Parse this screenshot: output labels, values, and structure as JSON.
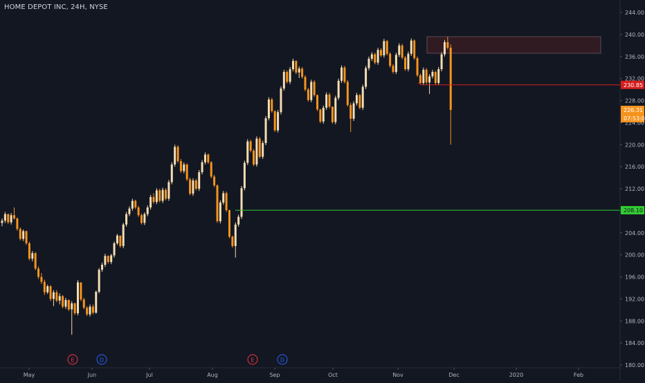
{
  "header": {
    "symbol_title": "HOME DEPOT INC, 24H, NYSE"
  },
  "colors": {
    "background": "#131722",
    "up": "#f5deb3",
    "down": "#f7941d",
    "axis_text": "#b2b5be",
    "support_line": "#33cc33",
    "resistance_line": "#d61e1e",
    "zone_fill": "#3b1d24",
    "zone_border": "#5d4b55",
    "event_earnings": "#f23645",
    "event_dividend": "#2962ff"
  },
  "chart_data": {
    "type": "candlestick",
    "title": "HOME DEPOT INC, 24H, NYSE",
    "ylim": [
      180,
      244
    ],
    "y_ticks": [
      "244.00",
      "240.00",
      "236.00",
      "232.00",
      "228.00",
      "224.00",
      "220.00",
      "216.00",
      "212.00",
      "208.00",
      "204.00",
      "200.00",
      "196.00",
      "192.00",
      "188.00",
      "184.00",
      "180.00"
    ],
    "x_tick_labels": [
      "May",
      "Jun",
      "Jul",
      "Aug",
      "Sep",
      "Oct",
      "Nov",
      "Dec",
      "2020",
      "Feb"
    ],
    "price_labels": [
      {
        "text": "230.85",
        "value": 230.85,
        "kind": "resistance"
      },
      {
        "text": "226.31",
        "value": 226.31,
        "kind": "last"
      },
      {
        "text": "07:53:02",
        "value": 224.8,
        "kind": "countdown"
      },
      {
        "text": "208.10",
        "value": 208.1,
        "kind": "support"
      }
    ],
    "events": [
      {
        "label": "E",
        "kind": "earnings"
      },
      {
        "label": "D",
        "kind": "dividend"
      },
      {
        "label": "E",
        "kind": "earnings"
      },
      {
        "label": "D",
        "kind": "dividend"
      }
    ],
    "zone": {
      "low": 236.6,
      "high": 239.6
    },
    "candles": [
      [
        205.8,
        206.6,
        205.2,
        206.2
      ],
      [
        206.2,
        207.8,
        205.8,
        207.4
      ],
      [
        207.4,
        207.5,
        205.6,
        205.9
      ],
      [
        205.9,
        207.6,
        205.5,
        207.2
      ],
      [
        207.2,
        208.6,
        206.4,
        206.6
      ],
      [
        206.6,
        206.8,
        204.4,
        204.7
      ],
      [
        204.7,
        205.0,
        202.6,
        202.9
      ],
      [
        202.9,
        204.6,
        202.5,
        204.3
      ],
      [
        204.3,
        204.4,
        201.8,
        202.1
      ],
      [
        202.1,
        202.4,
        199.0,
        199.3
      ],
      [
        199.3,
        200.7,
        198.8,
        200.3
      ],
      [
        200.3,
        200.5,
        197.2,
        197.5
      ],
      [
        197.5,
        197.9,
        195.6,
        196.0
      ],
      [
        196.0,
        196.7,
        194.7,
        195.1
      ],
      [
        195.1,
        195.5,
        192.7,
        193.2
      ],
      [
        193.2,
        194.6,
        192.9,
        194.3
      ],
      [
        194.3,
        194.5,
        191.6,
        192.0
      ],
      [
        192.0,
        193.6,
        190.7,
        193.2
      ],
      [
        193.2,
        193.6,
        191.4,
        191.7
      ],
      [
        191.7,
        193.0,
        191.0,
        192.5
      ],
      [
        192.5,
        192.7,
        190.3,
        190.6
      ],
      [
        190.6,
        192.2,
        190.2,
        191.8
      ],
      [
        191.8,
        191.9,
        189.8,
        190.1
      ],
      [
        190.1,
        191.6,
        185.5,
        191.2
      ],
      [
        191.2,
        191.3,
        189.1,
        189.4
      ],
      [
        189.4,
        195.4,
        189.0,
        195.0
      ],
      [
        195.0,
        195.0,
        191.6,
        191.9
      ],
      [
        191.9,
        192.2,
        190.1,
        190.4
      ],
      [
        190.4,
        190.7,
        188.9,
        189.2
      ],
      [
        189.2,
        191.0,
        188.8,
        190.6
      ],
      [
        190.6,
        191.0,
        189.2,
        189.5
      ],
      [
        189.5,
        193.5,
        189.3,
        193.3
      ],
      [
        193.3,
        197.6,
        193.0,
        197.3
      ],
      [
        197.3,
        198.6,
        196.9,
        198.2
      ],
      [
        198.2,
        200.2,
        197.8,
        199.8
      ],
      [
        199.8,
        199.9,
        198.4,
        198.7
      ],
      [
        198.7,
        200.2,
        198.3,
        199.9
      ],
      [
        199.9,
        202.4,
        199.5,
        202.1
      ],
      [
        202.1,
        203.8,
        201.8,
        203.5
      ],
      [
        203.5,
        203.5,
        201.3,
        201.6
      ],
      [
        201.6,
        205.8,
        201.2,
        205.5
      ],
      [
        205.5,
        207.8,
        205.1,
        207.4
      ],
      [
        207.4,
        208.8,
        207.0,
        208.4
      ],
      [
        208.4,
        210.2,
        208.0,
        209.8
      ],
      [
        209.8,
        210.0,
        208.3,
        208.6
      ],
      [
        208.6,
        208.9,
        206.9,
        207.2
      ],
      [
        207.2,
        207.5,
        205.5,
        205.8
      ],
      [
        205.8,
        207.7,
        205.4,
        207.4
      ],
      [
        207.4,
        209.0,
        207.0,
        208.6
      ],
      [
        208.6,
        210.9,
        208.2,
        210.5
      ],
      [
        210.5,
        211.2,
        209.3,
        209.6
      ],
      [
        209.6,
        212.1,
        209.2,
        211.7
      ],
      [
        211.7,
        212.0,
        209.5,
        209.8
      ],
      [
        209.8,
        212.2,
        209.4,
        211.8
      ],
      [
        211.8,
        212.1,
        209.9,
        210.2
      ],
      [
        210.2,
        213.6,
        209.8,
        213.2
      ],
      [
        213.2,
        216.8,
        212.8,
        216.4
      ],
      [
        216.4,
        220.0,
        216.0,
        219.6
      ],
      [
        219.6,
        219.9,
        216.7,
        217.0
      ],
      [
        217.0,
        217.4,
        214.9,
        215.2
      ],
      [
        215.2,
        216.8,
        214.8,
        216.4
      ],
      [
        216.4,
        216.6,
        213.4,
        213.7
      ],
      [
        213.7,
        214.0,
        210.8,
        211.1
      ],
      [
        211.1,
        213.9,
        210.7,
        213.5
      ],
      [
        213.5,
        213.8,
        211.7,
        212.0
      ],
      [
        212.0,
        215.4,
        211.6,
        215.0
      ],
      [
        215.0,
        217.2,
        214.6,
        216.8
      ],
      [
        216.8,
        218.6,
        216.4,
        218.2
      ],
      [
        218.2,
        218.4,
        216.5,
        216.8
      ],
      [
        216.8,
        217.0,
        213.9,
        214.2
      ],
      [
        214.2,
        214.5,
        212.3,
        212.6
      ],
      [
        212.6,
        212.8,
        205.8,
        206.1
      ],
      [
        206.1,
        209.9,
        205.7,
        209.5
      ],
      [
        209.5,
        211.6,
        209.1,
        211.2
      ],
      [
        211.2,
        211.5,
        207.8,
        208.1
      ],
      [
        208.1,
        208.2,
        203.0,
        203.3
      ],
      [
        203.3,
        203.5,
        201.3,
        201.6
      ],
      [
        201.6,
        205.9,
        199.5,
        205.5
      ],
      [
        205.5,
        207.3,
        205.1,
        206.9
      ],
      [
        206.9,
        212.5,
        206.5,
        212.1
      ],
      [
        212.1,
        217.1,
        211.7,
        216.7
      ],
      [
        216.7,
        221.0,
        216.3,
        220.6
      ],
      [
        220.6,
        220.9,
        218.6,
        218.9
      ],
      [
        218.9,
        219.2,
        216.1,
        216.4
      ],
      [
        216.4,
        221.5,
        216.0,
        221.1
      ],
      [
        221.1,
        221.4,
        217.5,
        217.8
      ],
      [
        217.8,
        220.7,
        217.4,
        220.3
      ],
      [
        220.3,
        225.2,
        219.9,
        224.8
      ],
      [
        224.8,
        228.6,
        224.4,
        228.2
      ],
      [
        228.2,
        228.5,
        225.8,
        226.1
      ],
      [
        226.1,
        226.2,
        222.3,
        222.6
      ],
      [
        222.6,
        226.3,
        222.2,
        225.9
      ],
      [
        225.9,
        230.6,
        225.5,
        230.2
      ],
      [
        230.2,
        233.6,
        229.8,
        233.2
      ],
      [
        233.2,
        233.5,
        231.1,
        231.4
      ],
      [
        231.4,
        234.1,
        231.0,
        233.7
      ],
      [
        233.7,
        235.6,
        233.3,
        235.2
      ],
      [
        235.2,
        235.3,
        232.8,
        233.1
      ],
      [
        233.1,
        234.2,
        232.1,
        233.8
      ],
      [
        233.8,
        234.1,
        232.0,
        232.3
      ],
      [
        232.3,
        232.6,
        229.7,
        230.0
      ],
      [
        230.0,
        230.3,
        227.8,
        228.1
      ],
      [
        228.1,
        231.8,
        227.7,
        231.4
      ],
      [
        231.4,
        231.7,
        228.7,
        229.0
      ],
      [
        229.0,
        229.1,
        226.1,
        226.4
      ],
      [
        226.4,
        226.5,
        223.9,
        224.2
      ],
      [
        224.2,
        227.1,
        223.8,
        226.7
      ],
      [
        226.7,
        229.5,
        226.3,
        229.1
      ],
      [
        229.1,
        229.4,
        226.6,
        226.9
      ],
      [
        226.9,
        226.9,
        223.8,
        224.1
      ],
      [
        224.1,
        228.9,
        223.7,
        228.5
      ],
      [
        228.5,
        232.0,
        228.1,
        231.6
      ],
      [
        231.6,
        234.4,
        231.2,
        234.0
      ],
      [
        234.0,
        234.3,
        231.1,
        231.4
      ],
      [
        231.4,
        231.7,
        226.9,
        227.2
      ],
      [
        227.2,
        227.6,
        222.3,
        224.7
      ],
      [
        224.7,
        227.9,
        224.3,
        227.5
      ],
      [
        227.5,
        229.4,
        227.1,
        229.0
      ],
      [
        229.0,
        229.2,
        226.4,
        226.7
      ],
      [
        226.7,
        230.9,
        226.3,
        230.5
      ],
      [
        230.5,
        234.3,
        230.1,
        233.9
      ],
      [
        233.9,
        236.0,
        233.5,
        235.6
      ],
      [
        235.6,
        236.8,
        235.2,
        236.4
      ],
      [
        236.4,
        236.7,
        234.6,
        234.9
      ],
      [
        234.9,
        237.6,
        234.5,
        237.2
      ],
      [
        237.2,
        237.5,
        235.9,
        236.2
      ],
      [
        236.2,
        239.2,
        235.8,
        238.8
      ],
      [
        238.8,
        239.0,
        236.2,
        236.5
      ],
      [
        236.5,
        236.8,
        234.0,
        234.3
      ],
      [
        234.3,
        234.6,
        232.9,
        233.2
      ],
      [
        233.2,
        236.7,
        232.8,
        236.3
      ],
      [
        236.3,
        238.4,
        235.9,
        238.0
      ],
      [
        238.0,
        238.3,
        235.5,
        235.8
      ],
      [
        235.8,
        236.1,
        233.4,
        233.7
      ],
      [
        233.7,
        236.9,
        233.3,
        236.5
      ],
      [
        236.5,
        239.3,
        236.1,
        238.9
      ],
      [
        238.9,
        239.1,
        235.4,
        235.7
      ],
      [
        235.7,
        236.0,
        232.3,
        232.6
      ],
      [
        232.6,
        232.9,
        230.9,
        231.2
      ],
      [
        231.2,
        234.0,
        230.8,
        233.6
      ],
      [
        233.6,
        233.9,
        231.0,
        231.3
      ],
      [
        231.3,
        232.8,
        229.2,
        232.4
      ],
      [
        232.4,
        233.6,
        232.0,
        233.2
      ],
      [
        233.2,
        233.4,
        230.9,
        231.2
      ],
      [
        231.2,
        234.1,
        230.8,
        233.7
      ],
      [
        233.7,
        236.8,
        233.3,
        236.4
      ],
      [
        236.4,
        239.0,
        236.0,
        238.6
      ],
      [
        238.6,
        239.6,
        237.3,
        237.6
      ],
      [
        237.6,
        238.2,
        220.0,
        226.31
      ]
    ]
  }
}
